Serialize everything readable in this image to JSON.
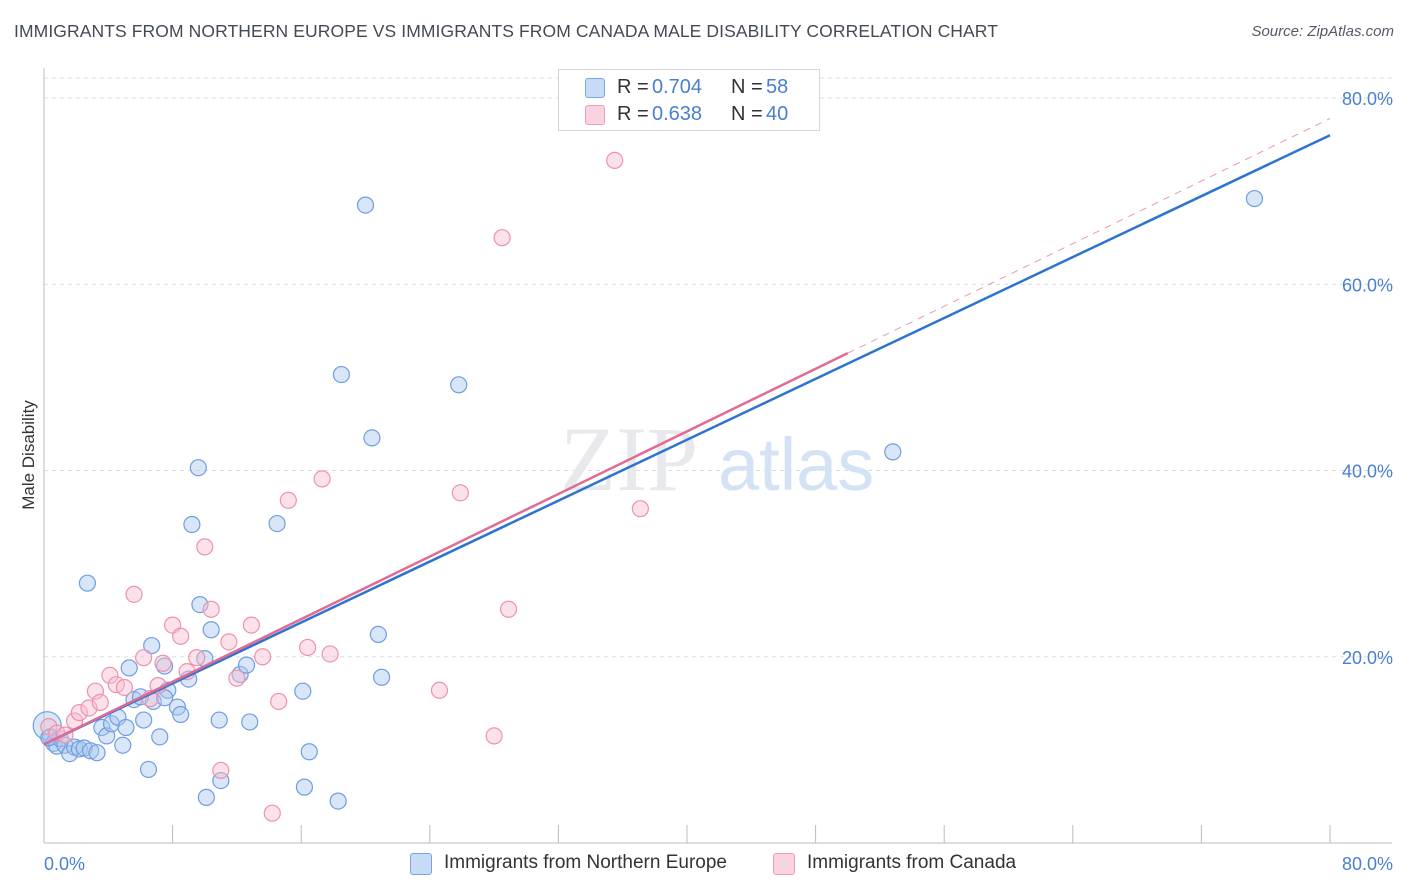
{
  "header": {
    "title": "IMMIGRANTS FROM NORTHERN EUROPE VS IMMIGRANTS FROM CANADA MALE DISABILITY CORRELATION CHART",
    "source": "Source: ZipAtlas.com"
  },
  "legend": {
    "series": [
      {
        "r_label": "R =",
        "r_value": "0.704",
        "n_label": "N =",
        "n_value": "58"
      },
      {
        "r_label": "R =",
        "r_value": "0.638",
        "n_label": "N =",
        "n_value": "40"
      }
    ]
  },
  "bottom_legend": {
    "items": [
      {
        "label": "Immigrants from Northern Europe"
      },
      {
        "label": "Immigrants from Canada"
      }
    ]
  },
  "colors": {
    "blue_fill": "#a9c7f0",
    "blue_stroke": "#6f9ee0",
    "blue_line": "#2e74cf",
    "pink_fill": "#f7bfd0",
    "pink_stroke": "#ee91ae",
    "pink_line": "#e06b95",
    "grid": "#dddddd",
    "tick_text": "#4a7fd0"
  },
  "chart_data": {
    "type": "scatter",
    "title": "IMMIGRANTS FROM NORTHERN EUROPE VS IMMIGRANTS FROM CANADA MALE DISABILITY CORRELATION CHART",
    "xlabel": "",
    "ylabel": "Male Disability",
    "xlim": [
      0,
      80
    ],
    "ylim": [
      0,
      80
    ],
    "x_tick_labels": [
      "0.0%",
      "80.0%"
    ],
    "y_tick_labels": [
      "20.0%",
      "40.0%",
      "60.0%",
      "80.0%"
    ],
    "y_ticks": [
      20,
      40,
      60,
      80
    ],
    "grid": true,
    "watermark": "ZIPatlas",
    "series": [
      {
        "name": "Immigrants from Northern Europe",
        "points": [
          [
            0.2,
            12.6
          ],
          [
            0.4,
            11.4
          ],
          [
            0.6,
            10.7
          ],
          [
            0.8,
            10.4
          ],
          [
            1.0,
            11.2
          ],
          [
            1.3,
            10.5
          ],
          [
            1.6,
            9.6
          ],
          [
            1.9,
            10.3
          ],
          [
            2.2,
            10.1
          ],
          [
            2.5,
            10.2
          ],
          [
            2.9,
            9.9
          ],
          [
            3.3,
            9.7
          ],
          [
            3.6,
            12.4
          ],
          [
            3.9,
            11.5
          ],
          [
            4.2,
            12.8
          ],
          [
            4.6,
            13.5
          ],
          [
            4.9,
            10.5
          ],
          [
            5.1,
            12.4
          ],
          [
            5.3,
            18.8
          ],
          [
            5.6,
            15.4
          ],
          [
            6.2,
            13.2
          ],
          [
            6.5,
            7.9
          ],
          [
            6.8,
            15.2
          ],
          [
            7.2,
            11.4
          ],
          [
            7.5,
            19.0
          ],
          [
            7.7,
            16.4
          ],
          [
            8.3,
            14.6
          ],
          [
            8.5,
            13.8
          ],
          [
            9.0,
            17.6
          ],
          [
            9.2,
            34.2
          ],
          [
            9.6,
            40.3
          ],
          [
            10.0,
            19.8
          ],
          [
            10.4,
            22.9
          ],
          [
            10.9,
            13.2
          ],
          [
            11.0,
            6.7
          ],
          [
            12.2,
            18.1
          ],
          [
            12.6,
            19.1
          ],
          [
            12.8,
            13.0
          ],
          [
            14.5,
            34.3
          ],
          [
            16.1,
            16.3
          ],
          [
            16.2,
            6.0
          ],
          [
            16.5,
            9.8
          ],
          [
            18.5,
            50.3
          ],
          [
            18.3,
            4.5
          ],
          [
            20.0,
            68.5
          ],
          [
            20.4,
            43.5
          ],
          [
            20.8,
            22.4
          ],
          [
            21.0,
            17.8
          ],
          [
            25.8,
            49.2
          ],
          [
            2.7,
            27.9
          ],
          [
            6.7,
            21.2
          ],
          [
            9.7,
            25.6
          ],
          [
            10.1,
            4.9
          ],
          [
            7.5,
            15.6
          ],
          [
            6.0,
            15.7
          ],
          [
            52.8,
            42.0
          ],
          [
            75.3,
            69.2
          ],
          [
            0.3,
            11.3
          ]
        ]
      },
      {
        "name": "Immigrants from Canada",
        "points": [
          [
            0.3,
            12.5
          ],
          [
            0.8,
            11.8
          ],
          [
            1.3,
            11.6
          ],
          [
            1.9,
            13.1
          ],
          [
            2.2,
            14.0
          ],
          [
            2.8,
            14.5
          ],
          [
            3.2,
            16.3
          ],
          [
            3.5,
            15.1
          ],
          [
            4.1,
            18.0
          ],
          [
            4.5,
            17.0
          ],
          [
            5.0,
            16.7
          ],
          [
            5.6,
            26.7
          ],
          [
            6.2,
            19.9
          ],
          [
            6.6,
            15.5
          ],
          [
            7.1,
            16.9
          ],
          [
            7.4,
            19.3
          ],
          [
            8.0,
            23.4
          ],
          [
            8.5,
            22.2
          ],
          [
            8.9,
            18.4
          ],
          [
            9.5,
            19.9
          ],
          [
            10.0,
            31.8
          ],
          [
            10.4,
            25.1
          ],
          [
            11.0,
            7.8
          ],
          [
            11.5,
            21.6
          ],
          [
            12.0,
            17.7
          ],
          [
            12.9,
            23.4
          ],
          [
            13.6,
            20.0
          ],
          [
            14.2,
            3.2
          ],
          [
            14.6,
            15.2
          ],
          [
            15.2,
            36.8
          ],
          [
            16.4,
            21.0
          ],
          [
            17.3,
            39.1
          ],
          [
            17.8,
            20.3
          ],
          [
            24.6,
            16.4
          ],
          [
            25.9,
            37.6
          ],
          [
            28.0,
            11.5
          ],
          [
            28.5,
            65.0
          ],
          [
            28.9,
            25.1
          ],
          [
            35.5,
            73.3
          ],
          [
            37.1,
            35.9
          ]
        ]
      }
    ],
    "trend_lines": [
      {
        "series": "Immigrants from Northern Europe",
        "x": [
          0,
          80
        ],
        "y": [
          10.6,
          76.0
        ]
      },
      {
        "series": "Immigrants from Canada",
        "x": [
          0,
          50
        ],
        "y": [
          10.6,
          52.6
        ],
        "extrapolated_to": [
          80,
          77.8
        ]
      }
    ]
  }
}
